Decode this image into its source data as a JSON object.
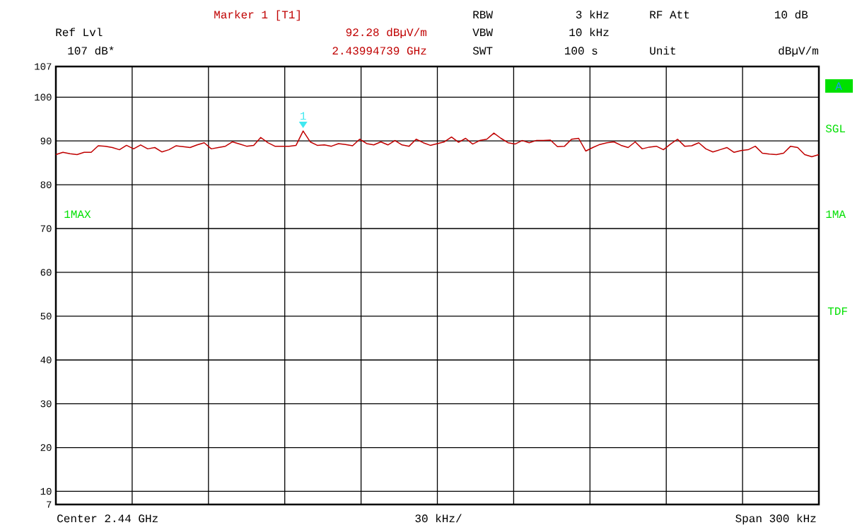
{
  "chart_data": {
    "type": "line",
    "categories": [
      null,
      null,
      null,
      null,
      null,
      null,
      null,
      null,
      null,
      null,
      null,
      null,
      null,
      null,
      null,
      null,
      null,
      null,
      null,
      null,
      null,
      null,
      null,
      null,
      null,
      null,
      null,
      null,
      null,
      null,
      null,
      null,
      null,
      null,
      null,
      null,
      null,
      null,
      null,
      null,
      null,
      null,
      null,
      null,
      null,
      null,
      null,
      null,
      null,
      null,
      null,
      null,
      null,
      null,
      null,
      null,
      null,
      null,
      null,
      null,
      null,
      null,
      null,
      null,
      null,
      null,
      null,
      null,
      null,
      null,
      null,
      null,
      null,
      null,
      null,
      null,
      null,
      null,
      null,
      null,
      null,
      null,
      null,
      null,
      null,
      null,
      null,
      null,
      null,
      null,
      null,
      null,
      null,
      null,
      null,
      null,
      null,
      null,
      null,
      null,
      null,
      null,
      null,
      null,
      null,
      null,
      null,
      null,
      null
    ],
    "series": [
      {
        "color": "#c00000",
        "values": [
          86.9,
          87.4,
          87.1,
          86.9,
          87.4,
          87.4,
          88.9,
          88.8,
          88.5,
          88.0,
          89.0,
          88.2,
          89.1,
          88.2,
          88.5,
          87.5,
          88.0,
          88.9,
          88.7,
          88.5,
          89.1,
          89.6,
          88.2,
          88.5,
          88.8,
          89.8,
          89.3,
          88.8,
          89.0,
          90.8,
          89.6,
          88.8,
          88.8,
          88.8,
          89.0,
          92.28,
          89.8,
          89.0,
          89.1,
          88.8,
          89.4,
          89.2,
          88.9,
          90.4,
          89.4,
          89.1,
          89.8,
          89.1,
          90.1,
          89.1,
          88.8,
          90.4,
          89.6,
          89.0,
          89.4,
          89.8,
          90.9,
          89.7,
          90.6,
          89.3,
          90.1,
          90.4,
          91.8,
          90.6,
          89.6,
          89.3,
          90.1,
          89.6,
          90.1,
          90.1,
          90.2,
          88.7,
          88.8,
          90.4,
          90.6,
          87.7,
          88.5,
          89.2,
          89.6,
          89.8,
          89.0,
          88.5,
          89.8,
          88.2,
          88.6,
          88.8,
          88.0,
          89.3,
          90.4,
          88.8,
          88.9,
          89.6,
          88.2,
          87.5,
          88.0,
          88.5,
          87.4,
          87.8,
          88.0,
          88.8,
          87.2,
          87.0,
          86.9,
          87.2,
          88.8,
          88.5,
          86.9,
          86.4,
          86.9
        ]
      }
    ],
    "ylim": [
      7,
      107
    ],
    "yticks": [
      7,
      10,
      20,
      30,
      40,
      50,
      60,
      70,
      80,
      90,
      100,
      107
    ],
    "tick_labels": "y",
    "grid": true,
    "annotations": [
      "Marker 1 [T1]",
      "Ref Lvl",
      "92.28 dBµV/m",
      "107 dB*",
      "2.43994739 GHz",
      "RBW",
      "3 kHz",
      "RF Att",
      "10 dB",
      "VBW",
      "10 kHz",
      "SWT",
      "100 s",
      "Unit",
      "dBµV/m",
      "1MAX",
      "A",
      "SGL",
      "1MA",
      "TDF",
      "Center 2.44 GHz",
      "30 kHz/",
      "Span 300 kHz",
      {
        "text": "1",
        "y": 92.28
      }
    ]
  }
}
